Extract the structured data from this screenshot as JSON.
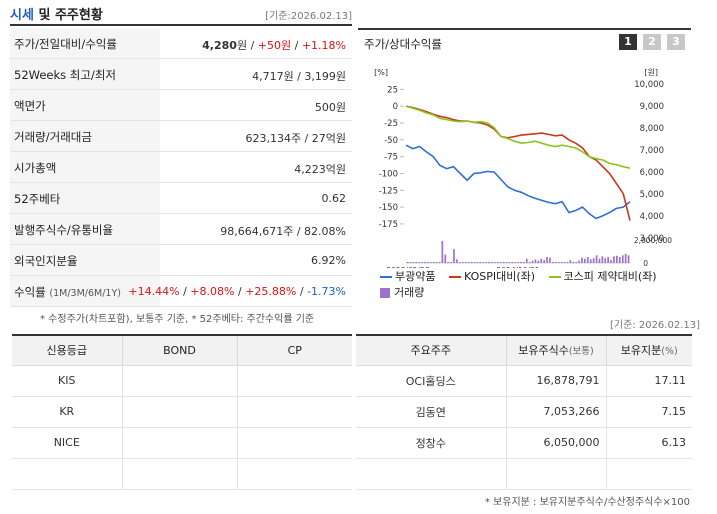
{
  "header": {
    "title_accent": "시세",
    "title_rest": "및 주주현황",
    "date": "[기준:2026.02.13]"
  },
  "info": {
    "rows": [
      {
        "label": "주가/전일대비/수익률"
      },
      {
        "label": "52Weeks 최고/최저",
        "value": "4,717원 / 3,199원"
      },
      {
        "label": "액면가",
        "value": "500원"
      },
      {
        "label": "거래량/거래대금",
        "value": "623,134주 / 27억원"
      },
      {
        "label": "시가총액",
        "value": "4,223억원"
      },
      {
        "label": "52주베타",
        "value": "0.62"
      },
      {
        "label": "발행주식수/유통비율",
        "value": "98,664,671주 / 82.08%"
      },
      {
        "label": "외국인지분율",
        "value": "6.92%"
      },
      {
        "label": "수익률",
        "label_sub": "(1M/3M/6M/1Y)"
      }
    ],
    "price": {
      "value": "4,280",
      "unit": "원",
      "change": "+50원",
      "sep1": " / ",
      "sep2": " / ",
      "rate": "+1.18%"
    },
    "returns": {
      "m1": "+14.44%",
      "m3": "+8.08%",
      "m6": "+25.88%",
      "y1": "-1.73%",
      "sep": "/"
    },
    "note": "* 수정주가(차트포함), 보통주 기준, * 52주베타: 주간수익률 기준"
  },
  "chart": {
    "title": "주가/상대수익률",
    "buttons": [
      "1",
      "2",
      "3"
    ],
    "active_button": "1",
    "left_unit": "[%]",
    "right_unit": "[원]",
    "vol_axis": [
      "2,000,000",
      "0"
    ],
    "legend": {
      "s1": "부광약품",
      "s2": "KOSPI대비(좌)",
      "s3": "코스피 제약대비(좌)",
      "vol": "거래량"
    },
    "colors": {
      "s1": "#2f6fd8",
      "s2": "#c8381a",
      "s3": "#8cc41d",
      "vol": "#a070d0"
    }
  },
  "chart_data": {
    "type": "line",
    "x_labels": [
      "2023/02/28",
      "2024/10/31"
    ],
    "y_left_ticks": [
      25,
      0,
      -25,
      -50,
      -75,
      -100,
      -125,
      -150,
      -175
    ],
    "y_left_range": [
      -190,
      30
    ],
    "y_right_ticks": [
      "10,000",
      "9,000",
      "8,000",
      "7,000",
      "6,000",
      "5,000",
      "4,000",
      "3,000"
    ],
    "series": [
      {
        "name": "부광약품",
        "values": [
          -58,
          -63,
          -60,
          -68,
          -75,
          -88,
          -93,
          -90,
          -100,
          -110,
          -100,
          -99,
          -97,
          -98,
          -109,
          -120,
          -125,
          -128,
          -133,
          -137,
          -140,
          -143,
          -145,
          -142,
          -158,
          -155,
          -150,
          -160,
          -167,
          -163,
          -158,
          -152,
          -150,
          -142
        ]
      },
      {
        "name": "KOSPI대비(좌)",
        "values": [
          0,
          -2,
          -5,
          -8,
          -12,
          -15,
          -17,
          -20,
          -22,
          -22,
          -24,
          -25,
          -28,
          -34,
          -45,
          -47,
          -45,
          -43,
          -42,
          -41,
          -40,
          -42,
          -44,
          -43,
          -50,
          -55,
          -62,
          -75,
          -80,
          -90,
          -100,
          -115,
          -130,
          -170
        ]
      },
      {
        "name": "코스피 제약대비(좌)",
        "values": [
          0,
          -3,
          -6,
          -10,
          -13,
          -18,
          -20,
          -22,
          -23,
          -22,
          -24,
          -23,
          -25,
          -32,
          -45,
          -48,
          -52,
          -55,
          -54,
          -52,
          -55,
          -58,
          -60,
          -58,
          -60,
          -62,
          -68,
          -75,
          -78,
          -80,
          -85,
          -87,
          -90,
          -92
        ]
      }
    ],
    "volume": [
      0.02,
      0.02,
      0.02,
      0.02,
      0.02,
      0.02,
      0.02,
      0.02,
      0.02,
      0.02,
      0.02,
      0.02,
      0.92,
      0.35,
      0.02,
      0.02,
      0.58,
      0.15,
      0.02,
      0.02,
      0.02,
      0.02,
      0.02,
      0.02,
      0.02,
      0.02,
      0.02,
      0.02,
      0.02,
      0.02,
      0.02,
      0.02,
      0.02,
      0.02,
      0.02,
      0.02,
      0.02,
      0.02,
      0.02,
      0.02,
      0.02,
      0.18,
      0.02,
      0.1,
      0.15,
      0.1,
      0.18,
      0.12,
      0.25,
      0.22,
      0.02,
      0.02,
      0.02,
      0.02,
      0.02,
      0.02,
      0.12,
      0.05,
      0.02,
      0.1,
      0.22,
      0.18,
      0.25,
      0.15,
      0.2,
      0.32,
      0.18,
      0.28,
      0.2,
      0.25,
      0.12,
      0.28,
      0.3,
      0.25,
      0.32,
      0.38,
      0.32
    ]
  },
  "credit": {
    "headers": [
      "신용등급",
      "BOND",
      "CP"
    ],
    "rows": [
      [
        "KIS",
        "",
        ""
      ],
      [
        "KR",
        "",
        ""
      ],
      [
        "NICE",
        "",
        ""
      ]
    ]
  },
  "holders": {
    "date": "[기준: 2026.02.13]",
    "headers": {
      "h1": "주요주주",
      "h2": "보유주식수",
      "h2_sub": "(보통)",
      "h3": "보유지분",
      "h3_sub": "(%)"
    },
    "rows": [
      {
        "name": "OCI홀딩스",
        "shares": "16,878,791",
        "pct": "17.11"
      },
      {
        "name": "김동연",
        "shares": "7,053,266",
        "pct": "7.15"
      },
      {
        "name": "정창수",
        "shares": "6,050,000",
        "pct": "6.13"
      }
    ],
    "note": "* 보유지분 : 보유지분주식수/수산정주식수×100"
  }
}
